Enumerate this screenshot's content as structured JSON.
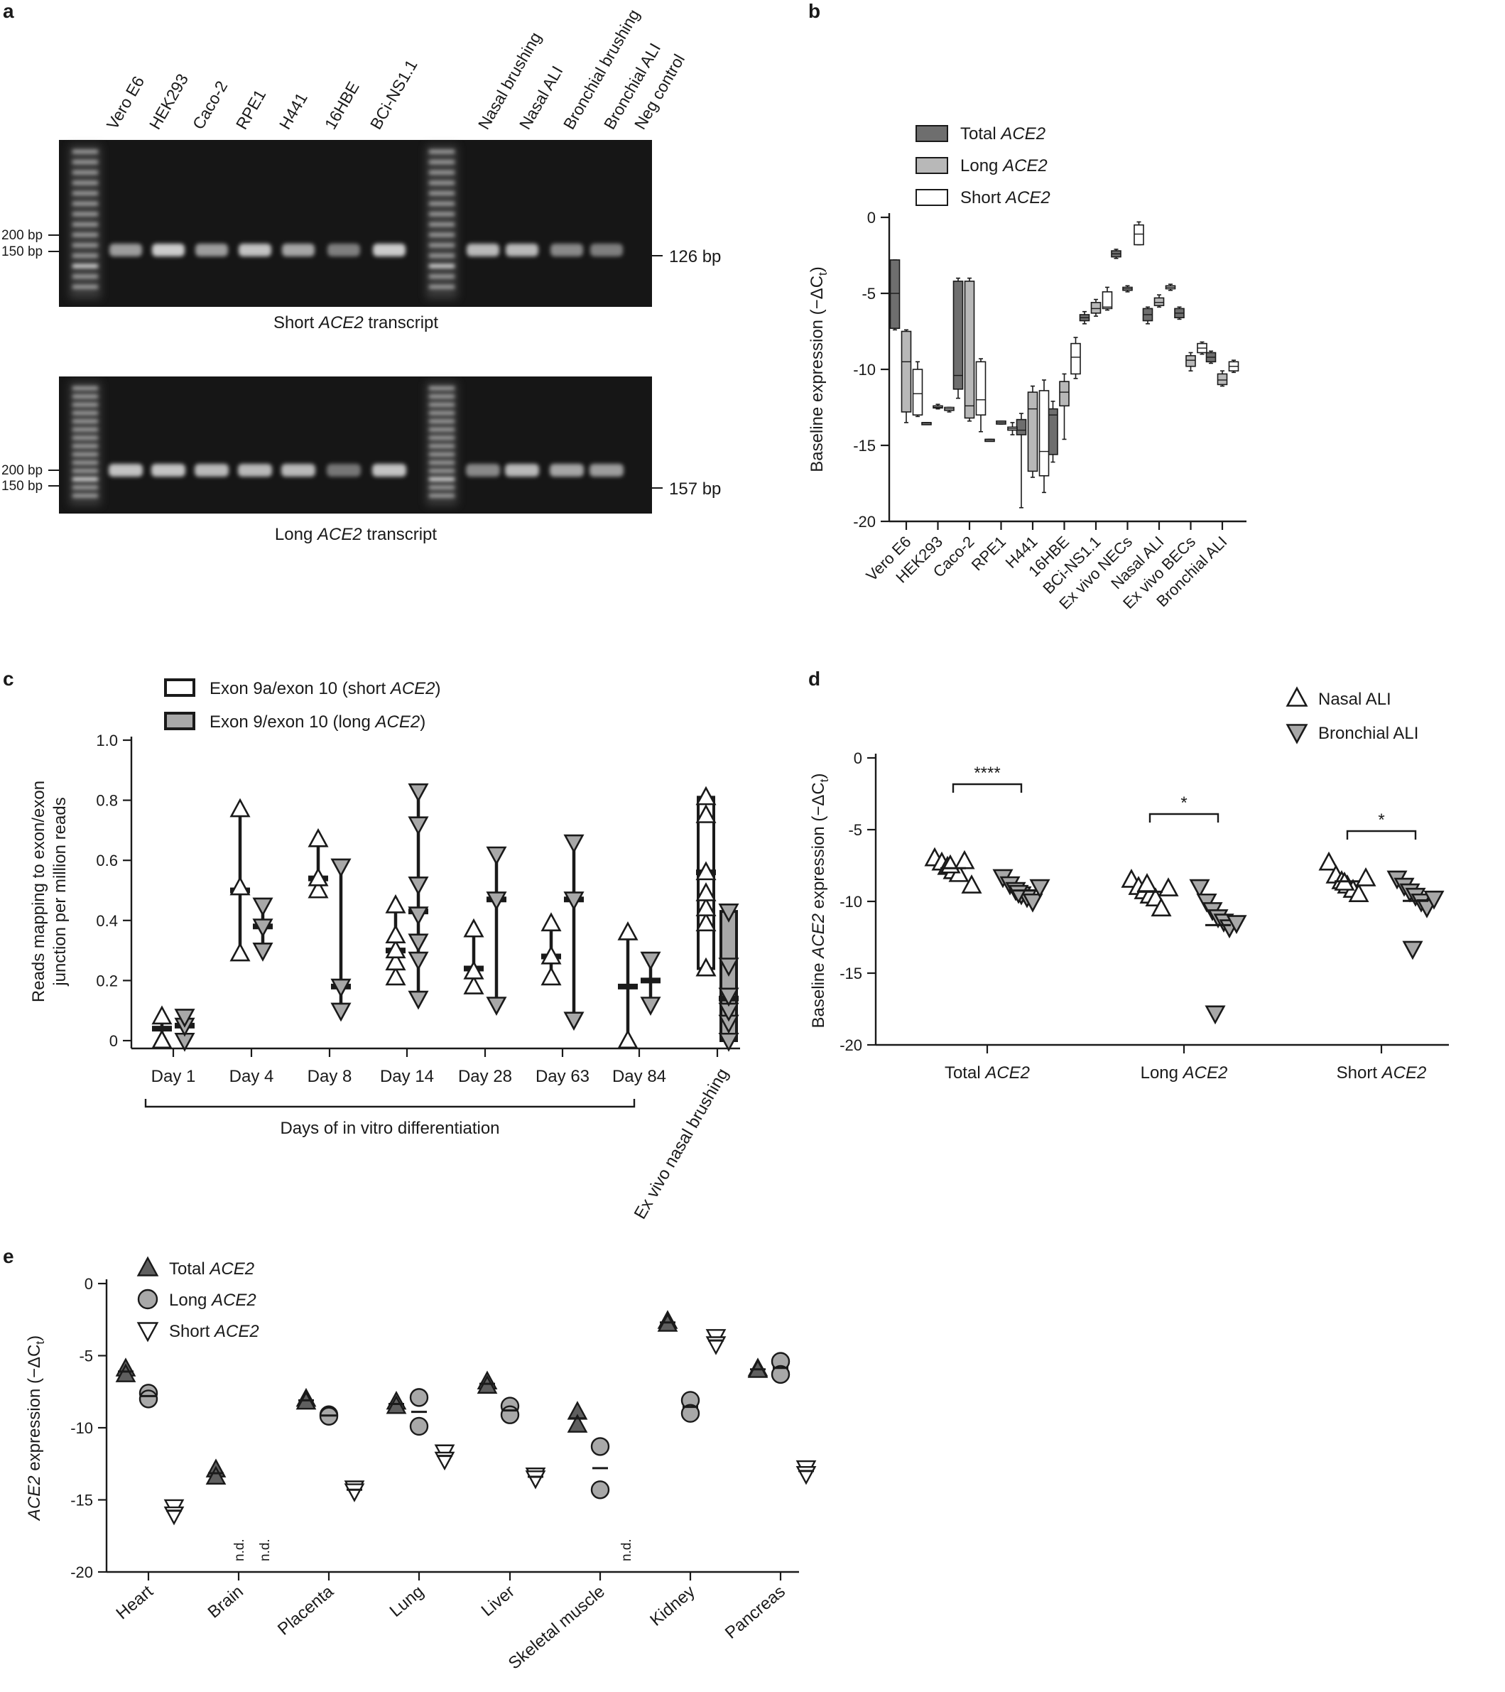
{
  "panels": {
    "a": "a",
    "b": "b",
    "c": "c",
    "d": "d",
    "e": "e"
  },
  "chart_data": [
    {
      "panel": "a",
      "type": "gel",
      "lanes": [
        "Vero E6",
        "HEK293",
        "Caco-2",
        "RPE1",
        "H441",
        "16HBE",
        "BCi-NS1.1",
        "Nasal brushing",
        "Nasal ALI",
        "Bronchial brushing",
        "Bronchial ALI",
        "Neg control"
      ],
      "ladder_marks": [
        "200 bp",
        "150 bp"
      ],
      "gels": [
        {
          "caption_pre": "Short ",
          "caption_em": "ACE2",
          "caption_post": " transcript",
          "product_size": "126 bp"
        },
        {
          "caption_pre": "Long ",
          "caption_em": "ACE2",
          "caption_post": " transcript",
          "product_size": "157 bp"
        }
      ]
    },
    {
      "panel": "b",
      "type": "box",
      "ylabel_pre": "Baseline expression (−ΔC",
      "ylabel_sub": "t",
      "ylabel_post": ")",
      "ylim": [
        -20,
        0
      ],
      "yticks": [
        0,
        -5,
        -10,
        -15,
        -20
      ],
      "categories": [
        "Vero E6",
        "HEK293",
        "Caco-2",
        "RPE1",
        "H441",
        "16HBE",
        "BCi-NS1.1",
        "Ex vivo NECs",
        "Nasal ALI",
        "Ex vivo BECs",
        "Bronchial ALI"
      ],
      "legend": [
        {
          "pre": "Total ",
          "em": "ACE2",
          "color": "#6e6e6e"
        },
        {
          "pre": "Long ",
          "em": "ACE2",
          "color": "#b8b8b8"
        },
        {
          "pre": "Short ",
          "em": "ACE2",
          "color": "#ffffff"
        }
      ],
      "series": [
        {
          "key": "total",
          "boxes": [
            [
              -7.4,
              -7.3,
              -5.0,
              -2.8,
              -2.8
            ],
            [
              -13.5,
              -13.5,
              -13.5,
              -13.5,
              -13.5
            ],
            [
              -11.9,
              -11.3,
              -10.4,
              -4.2,
              -4.0
            ],
            [
              -14.6,
              -14.6,
              -14.6,
              -14.6,
              -14.6
            ],
            [
              -19.1,
              -14.3,
              -14.0,
              -13.3,
              -12.9
            ],
            [
              -16.1,
              -15.6,
              -13.0,
              -12.6,
              -12.1
            ],
            [
              -7.0,
              -6.8,
              -6.6,
              -6.4,
              -6.2
            ],
            [
              -2.7,
              -2.6,
              -2.4,
              -2.2,
              -2.1
            ],
            [
              -7.0,
              -6.8,
              -6.4,
              -6.0,
              -5.9
            ],
            [
              -6.7,
              -6.6,
              -6.3,
              -6.0,
              -5.9
            ],
            [
              -9.6,
              -9.5,
              -9.2,
              -8.9,
              -8.8
            ]
          ]
        },
        {
          "key": "long",
          "boxes": [
            [
              -13.5,
              -12.8,
              -9.5,
              -7.5,
              -7.4
            ],
            [
              -12.6,
              -12.5,
              -12.5,
              -12.4,
              -12.3
            ],
            [
              -13.4,
              -13.2,
              -12.4,
              -4.2,
              -4.0
            ],
            [
              -13.6,
              -13.6,
              -13.5,
              -13.4,
              -13.4
            ],
            [
              -17.1,
              -16.7,
              -12.6,
              -11.5,
              -11.1
            ],
            [
              -14.6,
              -12.4,
              -11.5,
              -10.8,
              -10.3
            ],
            [
              -6.5,
              -6.3,
              -6.0,
              -5.6,
              -5.4
            ],
            [
              -4.9,
              -4.8,
              -4.7,
              -4.6,
              -4.5
            ],
            [
              -5.9,
              -5.8,
              -5.6,
              -5.3,
              -5.1
            ],
            [
              -10.1,
              -9.8,
              -9.4,
              -9.1,
              -8.9
            ],
            [
              -11.1,
              -11.0,
              -10.7,
              -10.3,
              -10.1
            ]
          ]
        },
        {
          "key": "short",
          "boxes": [
            [
              -13.1,
              -13.0,
              -11.6,
              -10.0,
              -9.5
            ],
            [
              -12.8,
              -12.7,
              -12.6,
              -12.5,
              -12.5
            ],
            [
              -14.1,
              -13.0,
              -12.0,
              -9.5,
              -9.3
            ],
            [
              -14.3,
              -14.0,
              -13.9,
              -13.8,
              -13.5
            ],
            [
              -18.1,
              -17.0,
              -15.4,
              -11.4,
              -10.7
            ],
            [
              -10.6,
              -10.3,
              -9.2,
              -8.3,
              -7.9
            ],
            [
              -6.1,
              -6.0,
              -5.9,
              -4.9,
              -4.6
            ],
            [
              -1.8,
              -1.8,
              -1.1,
              -0.5,
              -0.3
            ],
            [
              -4.8,
              -4.7,
              -4.6,
              -4.5,
              -4.4
            ],
            [
              -9.0,
              -8.9,
              -8.6,
              -8.3,
              -8.2
            ],
            [
              -10.2,
              -10.1,
              -9.8,
              -9.5,
              -9.4
            ]
          ]
        }
      ]
    },
    {
      "panel": "c",
      "type": "scatter-range",
      "ylabel_line1": "Reads mapping to exon/exon",
      "ylabel_line2": "junction per million reads",
      "ylim": [
        0,
        1.0
      ],
      "yticks": [
        "1.0",
        "0.8",
        "0.6",
        "0.4",
        "0.2",
        "0"
      ],
      "categories": [
        "Day 1",
        "Day 4",
        "Day 8",
        "Day 14",
        "Day 28",
        "Day 63",
        "Day 84"
      ],
      "ex_vivo_label": "Ex vivo nasal brushing",
      "bracket_label": "Days of in vitro differentiation",
      "legend": [
        {
          "pre": "Exon 9a/exon 10 (short ",
          "em": "ACE2",
          "post": ")",
          "color": "#ffffff"
        },
        {
          "pre": "Exon 9/exon 10 (long ",
          "em": "ACE2",
          "post": ")",
          "color": "#a8a8a8"
        }
      ],
      "series": [
        {
          "key": "short",
          "groups": [
            {
              "min": 0.0,
              "max": 0.08,
              "mean": 0.04,
              "points": [
                0.0,
                0.0,
                0.08
              ]
            },
            {
              "min": 0.29,
              "max": 0.77,
              "mean": 0.5,
              "points": [
                0.29,
                0.51,
                0.77
              ]
            },
            {
              "min": 0.5,
              "max": 0.67,
              "mean": 0.54,
              "points": [
                0.5,
                0.54,
                0.67
              ]
            },
            {
              "min": 0.21,
              "max": 0.45,
              "mean": 0.3,
              "points": [
                0.21,
                0.26,
                0.3,
                0.35,
                0.45
              ]
            },
            {
              "min": 0.18,
              "max": 0.37,
              "mean": 0.24,
              "points": [
                0.18,
                0.23,
                0.37
              ]
            },
            {
              "min": 0.21,
              "max": 0.39,
              "mean": 0.28,
              "points": [
                0.21,
                0.28,
                0.39
              ]
            },
            {
              "min": 0.0,
              "max": 0.36,
              "mean": 0.18,
              "points": [
                0.0,
                0.36
              ]
            },
            {
              "min": 0.24,
              "max": 0.81,
              "mean": 0.56,
              "points": [
                0.24,
                0.39,
                0.44,
                0.49,
                0.56,
                0.75,
                0.81
              ]
            }
          ]
        },
        {
          "key": "long",
          "groups": [
            {
              "min": 0.0,
              "max": 0.08,
              "mean": 0.05,
              "points": [
                0.0,
                0.05,
                0.08
              ]
            },
            {
              "min": 0.3,
              "max": 0.45,
              "mean": 0.38,
              "points": [
                0.3,
                0.38,
                0.45
              ]
            },
            {
              "min": 0.1,
              "max": 0.58,
              "mean": 0.18,
              "points": [
                0.1,
                0.18,
                0.58
              ]
            },
            {
              "min": 0.14,
              "max": 0.83,
              "mean": 0.43,
              "points": [
                0.14,
                0.27,
                0.33,
                0.42,
                0.52,
                0.72,
                0.83
              ]
            },
            {
              "min": 0.12,
              "max": 0.62,
              "mean": 0.47,
              "points": [
                0.12,
                0.47,
                0.62
              ]
            },
            {
              "min": 0.07,
              "max": 0.66,
              "mean": 0.47,
              "points": [
                0.07,
                0.47,
                0.66
              ]
            },
            {
              "min": 0.12,
              "max": 0.27,
              "mean": 0.2,
              "points": [
                0.12,
                0.27
              ]
            },
            {
              "min": 0.0,
              "max": 0.43,
              "mean": 0.14,
              "points": [
                0.0,
                0.06,
                0.1,
                0.15,
                0.25,
                0.43
              ]
            }
          ]
        }
      ]
    },
    {
      "panel": "d",
      "type": "scatter",
      "ylabel_pre": "Baseline ",
      "ylabel_em": "ACE2",
      "ylabel_post": " expression (−ΔC",
      "ylabel_sub": "t",
      "ylabel_end": ")",
      "ylim": [
        -20,
        0
      ],
      "yticks": [
        0,
        -5,
        -10,
        -15,
        -20
      ],
      "categories": [
        {
          "pre": "Total ",
          "em": "ACE2"
        },
        {
          "pre": "Long ",
          "em": "ACE2"
        },
        {
          "pre": "Short ",
          "em": "ACE2"
        }
      ],
      "legend": [
        "Nasal ALI",
        "Bronchial ALI"
      ],
      "significance": [
        "****",
        "*",
        "*"
      ],
      "series": [
        {
          "name": "Nasal ALI",
          "groups": [
            [
              -7.0,
              -7.3,
              -7.6,
              -7.9,
              -8.1,
              -7.2,
              -8.9,
              -7.5
            ],
            [
              -8.5,
              -9.0,
              -9.3,
              -9.6,
              -9.8,
              -10.5,
              -9.1,
              -8.8
            ],
            [
              -7.3,
              -8.2,
              -8.6,
              -8.9,
              -9.2,
              -9.5,
              -8.4,
              -8.7
            ]
          ]
        },
        {
          "name": "Bronchial ALI",
          "groups": [
            [
              -8.3,
              -8.8,
              -9.2,
              -9.5,
              -9.7,
              -10.0,
              -9.0,
              -9.4
            ],
            [
              -9.0,
              -10.0,
              -10.6,
              -11.1,
              -11.4,
              -11.8,
              -11.5,
              -17.8
            ],
            [
              -8.4,
              -8.9,
              -9.3,
              -9.6,
              -10.0,
              -10.4,
              -9.8,
              -13.3
            ]
          ]
        }
      ]
    },
    {
      "panel": "e",
      "type": "scatter",
      "ylabel_em": "ACE2",
      "ylabel_post": " expression (−ΔC",
      "ylabel_sub": "t",
      "ylabel_end": ")",
      "ylim": [
        -20,
        0
      ],
      "yticks": [
        0,
        -5,
        -10,
        -15,
        -20
      ],
      "categories": [
        "Heart",
        "Brain",
        "Placenta",
        "Lung",
        "Liver",
        "Skeletal muscle",
        "Kidney",
        "Pancreas"
      ],
      "nd_label": "n.d.",
      "legend": [
        {
          "pre": "Total ",
          "em": "ACE2"
        },
        {
          "pre": "Long ",
          "em": "ACE2"
        },
        {
          "pre": "Short ",
          "em": "ACE2"
        }
      ],
      "series": [
        {
          "key": "total",
          "groups": [
            [
              -5.9,
              -6.3
            ],
            [
              -12.9,
              -13.4
            ],
            [
              -8.0,
              -8.2
            ],
            [
              -8.2,
              -8.5
            ],
            [
              -6.8,
              -7.1
            ],
            [
              -8.9,
              -9.8
            ],
            [
              -2.6,
              -2.8
            ],
            [
              -5.9,
              -6.0
            ]
          ]
        },
        {
          "key": "long",
          "groups": [
            [
              -7.6,
              -8.0
            ],
            null,
            [
              -9.1,
              -9.2
            ],
            [
              -7.9,
              -9.9
            ],
            [
              -8.5,
              -9.1
            ],
            [
              -11.3,
              -14.3
            ],
            [
              -8.1,
              -9.0
            ],
            [
              -5.4,
              -6.3
            ]
          ]
        },
        {
          "key": "short",
          "groups": [
            [
              -15.5,
              -16.0
            ],
            null,
            [
              -14.2,
              -14.4
            ],
            [
              -11.7,
              -12.2
            ],
            [
              -13.3,
              -13.5
            ],
            null,
            [
              -3.7,
              -4.2
            ],
            [
              -12.8,
              -13.2
            ]
          ]
        }
      ],
      "nd_positions": [
        {
          "series": "long",
          "group": 1
        },
        {
          "series": "short",
          "group": 1
        },
        {
          "series": "short",
          "group": 5
        }
      ]
    }
  ]
}
